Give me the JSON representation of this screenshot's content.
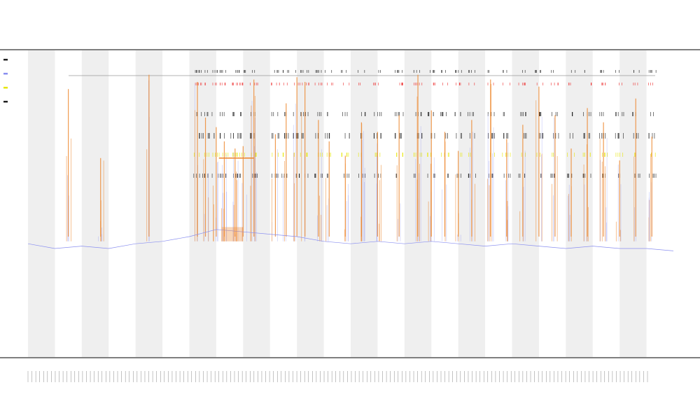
{
  "chart_data": {
    "type": "line",
    "title": "",
    "subtitle": "",
    "xlabel": "",
    "ylabel": "",
    "grid": false,
    "legend_position": "top-left",
    "colors": {
      "band": "#efefef",
      "series_main": "#8a8ff0",
      "series_spikes": "#ee8a33",
      "marker_yellow": "#e6e600",
      "marker_red": "#ee3333",
      "marker_dark": "#222222",
      "axis": "#333333"
    },
    "bands": 12,
    "x_range": [
      0,
      240
    ],
    "y_range": [
      0,
      100
    ],
    "baseline": {
      "x": [
        0,
        10,
        20,
        30,
        40,
        50,
        60,
        70,
        80,
        90,
        100,
        110,
        120,
        130,
        140,
        150,
        160,
        170,
        180,
        190,
        200,
        210,
        220,
        230,
        240
      ],
      "y": [
        27,
        25,
        26,
        25,
        27,
        28,
        30,
        33,
        32,
        31,
        30,
        28,
        27,
        28,
        27,
        28,
        27,
        26,
        27,
        26,
        25,
        26,
        25,
        25,
        24
      ]
    },
    "plateau": {
      "x_start": 72,
      "x_end": 80,
      "y": 34
    },
    "orange_line": {
      "x_start": 71,
      "x_end": 84,
      "y": 63
    },
    "spikes": [
      {
        "x": 15,
        "y": 92
      },
      {
        "x": 27,
        "y": 63
      },
      {
        "x": 45,
        "y": 98
      },
      {
        "x": 63,
        "y": 95
      },
      {
        "x": 66,
        "y": 80
      },
      {
        "x": 70,
        "y": 76
      },
      {
        "x": 73,
        "y": 70
      },
      {
        "x": 77,
        "y": 67
      },
      {
        "x": 80,
        "y": 68
      },
      {
        "x": 84,
        "y": 96
      },
      {
        "x": 92,
        "y": 73
      },
      {
        "x": 96,
        "y": 86
      },
      {
        "x": 100,
        "y": 97
      },
      {
        "x": 103,
        "y": 95
      },
      {
        "x": 108,
        "y": 79
      },
      {
        "x": 112,
        "y": 70
      },
      {
        "x": 118,
        "y": 64
      },
      {
        "x": 124,
        "y": 78
      },
      {
        "x": 130,
        "y": 74
      },
      {
        "x": 138,
        "y": 81
      },
      {
        "x": 145,
        "y": 98
      },
      {
        "x": 150,
        "y": 83
      },
      {
        "x": 155,
        "y": 74
      },
      {
        "x": 160,
        "y": 66
      },
      {
        "x": 165,
        "y": 79
      },
      {
        "x": 172,
        "y": 96
      },
      {
        "x": 178,
        "y": 71
      },
      {
        "x": 184,
        "y": 77
      },
      {
        "x": 190,
        "y": 93
      },
      {
        "x": 196,
        "y": 81
      },
      {
        "x": 202,
        "y": 67
      },
      {
        "x": 208,
        "y": 84
      },
      {
        "x": 214,
        "y": 78
      },
      {
        "x": 220,
        "y": 62
      },
      {
        "x": 226,
        "y": 88
      },
      {
        "x": 232,
        "y": 72
      }
    ],
    "tick_count": 160,
    "legend": {
      "entries": 4
    }
  }
}
